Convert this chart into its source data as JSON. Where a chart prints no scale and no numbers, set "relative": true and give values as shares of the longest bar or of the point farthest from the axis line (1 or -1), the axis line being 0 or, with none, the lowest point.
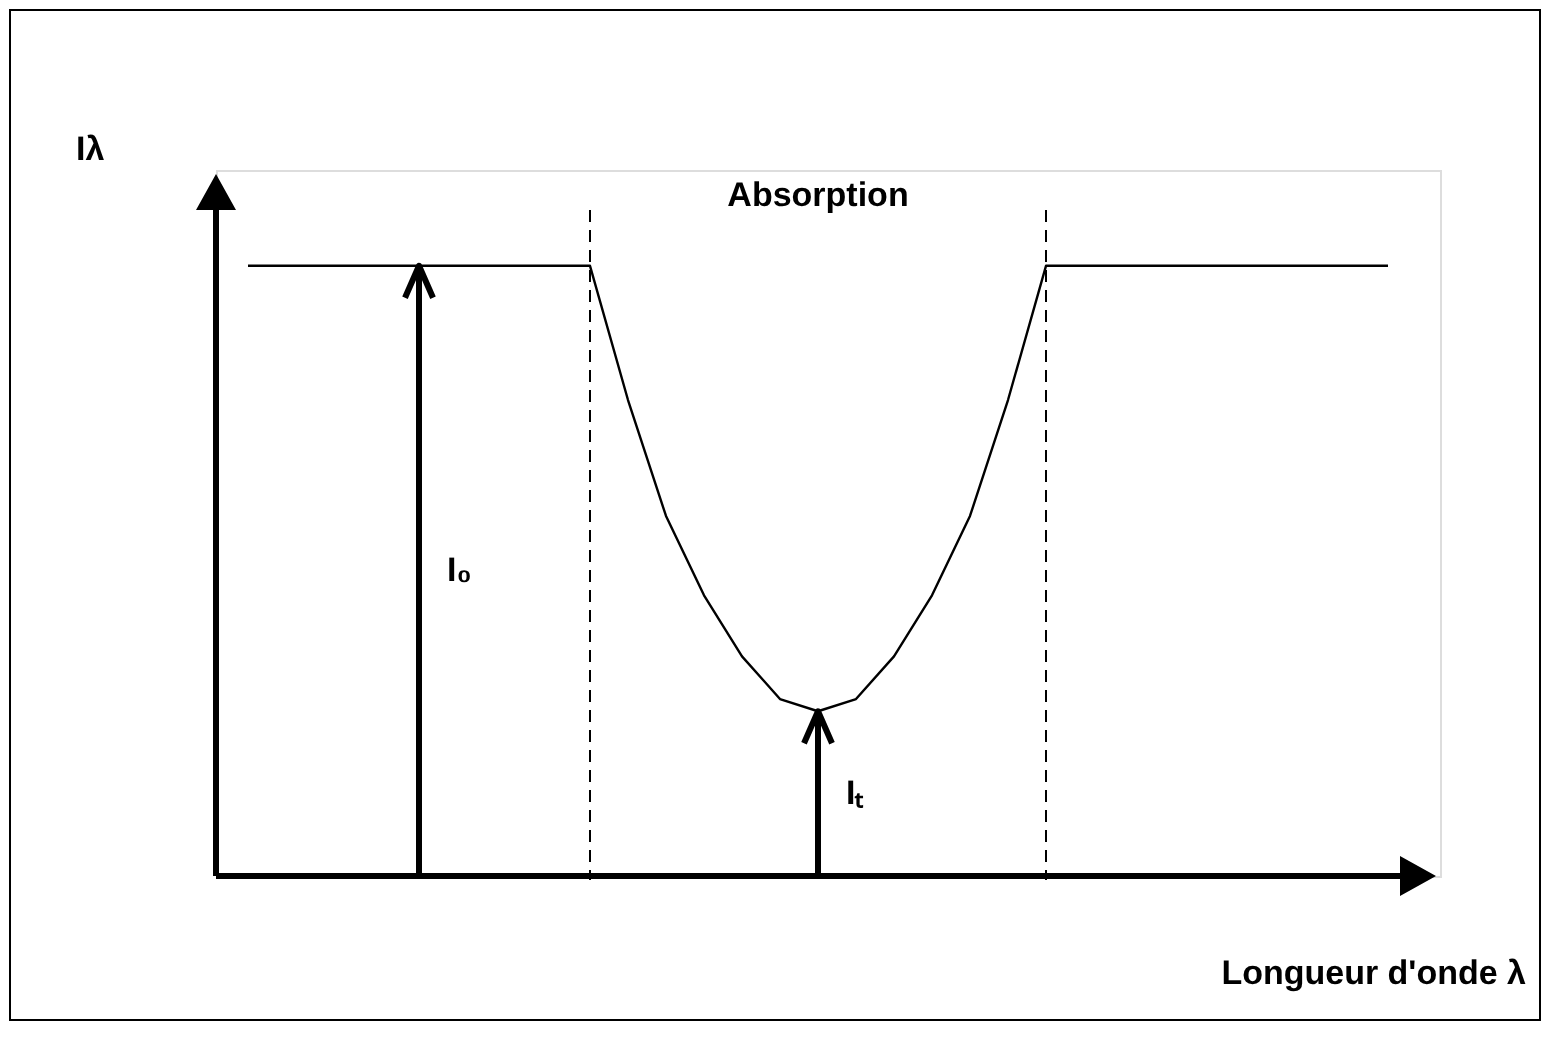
{
  "chart_data": {
    "type": "line",
    "relative": true,
    "xlabel": "Longueur d'onde λ",
    "ylabel": "Iλ",
    "tick_labels": false,
    "categories": [
      null,
      null,
      null,
      null,
      null,
      null,
      null,
      null,
      null,
      null,
      null,
      null,
      null,
      null,
      null,
      null,
      null,
      null,
      null,
      null,
      null,
      null,
      null,
      null,
      null,
      null,
      null,
      null,
      null,
      null,
      null
    ],
    "series": [
      {
        "color": "#000000",
        "values": [
          1,
          1,
          1,
          1,
          1,
          1,
          1,
          1,
          1,
          1,
          0.78,
          0.59,
          0.46,
          0.36,
          0.29,
          0.27,
          0.29,
          0.36,
          0.46,
          0.59,
          0.78,
          1,
          1,
          1,
          1,
          1,
          1,
          1,
          1,
          1,
          1
        ]
      }
    ],
    "annotations": [
      "Absorption",
      "I₀",
      "Iₜ"
    ]
  }
}
